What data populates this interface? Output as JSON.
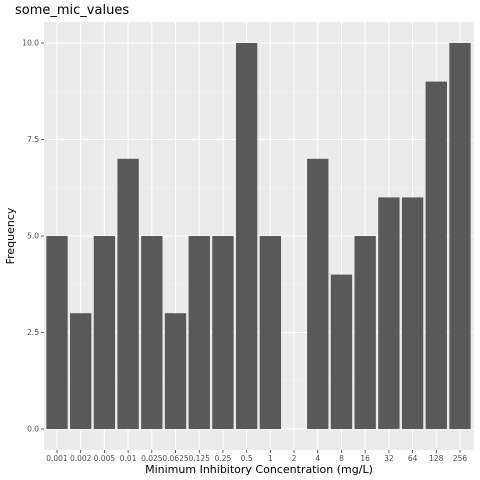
{
  "chart_data": {
    "type": "bar",
    "title": "some_mic_values",
    "xlabel": "Minimum Inhibitory Concentration (mg/L)",
    "ylabel": "Frequency",
    "categories": [
      "0.001",
      "0.002",
      "0.005",
      "0.01",
      "0.025",
      "0.0625",
      "0.125",
      "0.25",
      "0.5",
      "1",
      "2",
      "4",
      "8",
      "16",
      "32",
      "64",
      "128",
      "256"
    ],
    "tick_labels": [
      "0.001",
      "0.002",
      "0.005",
      "0.01",
      "0.025",
      "0.0625",
      "0.125",
      "0.25",
      "0.5",
      "1",
      "2",
      "4",
      "8",
      "16",
      "32",
      "64",
      "128",
      "256"
    ],
    "values": [
      5,
      3,
      5,
      7,
      5,
      3,
      5,
      5,
      10,
      5,
      0,
      7,
      4,
      5,
      6,
      6,
      9,
      10
    ],
    "ylim": [
      0,
      10
    ],
    "yticks": [
      0,
      2.5,
      5,
      7.5,
      10
    ],
    "ytick_labels": [
      "0.0",
      "2.5",
      "5.0",
      "7.5",
      "10.0"
    ],
    "grid": true,
    "colors": {
      "panel": "#ebebeb",
      "grid_major": "#ffffff",
      "grid_minor": "#f5f5f5",
      "bar": "#595959",
      "tick": "#333333"
    }
  }
}
